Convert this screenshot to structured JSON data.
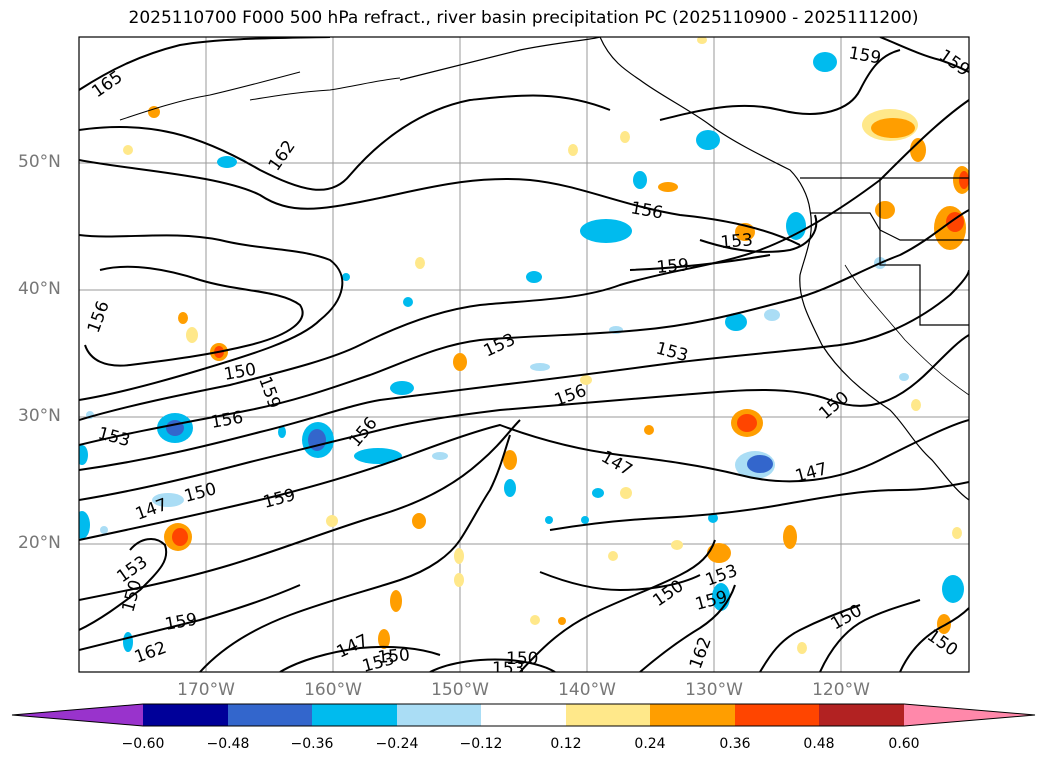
{
  "title": "2025110700 F000 500 hPa refract., river basin precipitation PC (2025110900 - 2025111200)",
  "lat_labels": [
    "50°N",
    "40°N",
    "30°N",
    "20°N"
  ],
  "lon_labels": [
    "170°W",
    "160°W",
    "150°W",
    "140°W",
    "130°W",
    "120°W"
  ],
  "contour_labels": [
    "165",
    "162",
    "159",
    "159",
    "156",
    "156",
    "153",
    "159",
    "153",
    "153",
    "156",
    "150",
    "159",
    "156",
    "156",
    "153",
    "150",
    "147",
    "159",
    "153",
    "150",
    "147",
    "150",
    "150",
    "153",
    "159",
    "150",
    "150",
    "159",
    "162",
    "147",
    "153",
    "150",
    "150",
    "153",
    "162",
    "147"
  ],
  "colorbar": {
    "ticks": [
      "−0.60",
      "−0.48",
      "−0.36",
      "−0.24",
      "−0.12",
      "0.12",
      "0.24",
      "0.36",
      "0.48",
      "0.60"
    ],
    "colors": [
      "#9933cc",
      "#000099",
      "#3366cc",
      "#00bbee",
      "#aaddf5",
      "#ffffff",
      "#ffe88a",
      "#ff9e00",
      "#ff4500",
      "#b22222",
      "#ff88aa"
    ]
  }
}
